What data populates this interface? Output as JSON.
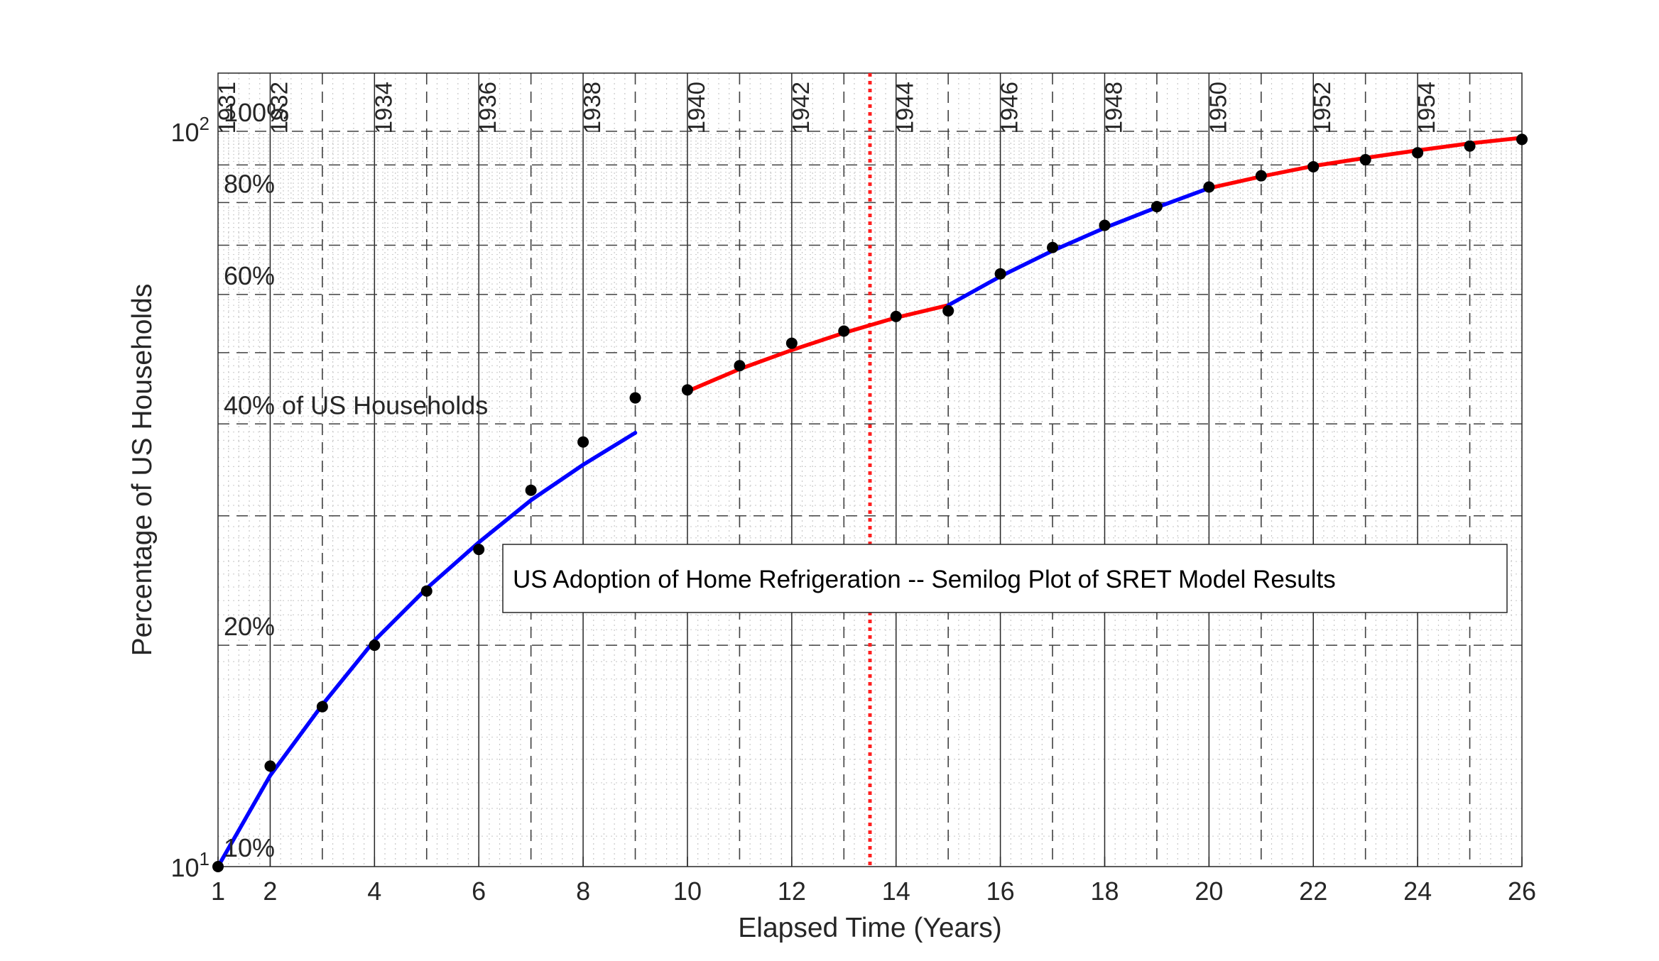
{
  "chart_data": {
    "type": "line",
    "yscale": "log",
    "xlabel": "Elapsed Time (Years)",
    "ylabel": "Percentage of US Households",
    "xlim": [
      1,
      26
    ],
    "ylim": [
      10,
      120
    ],
    "xticks": [
      1,
      2,
      4,
      6,
      8,
      10,
      12,
      14,
      16,
      18,
      20,
      22,
      24,
      26
    ],
    "yticks": [
      {
        "value": 10,
        "base": "10",
        "exp": "1"
      },
      {
        "value": 100,
        "base": "10",
        "exp": "2"
      }
    ],
    "grid": true,
    "year_labels": [
      {
        "x": 1,
        "label": "1931"
      },
      {
        "x": 2,
        "label": "1932"
      },
      {
        "x": 4,
        "label": "1934"
      },
      {
        "x": 6,
        "label": "1936"
      },
      {
        "x": 8,
        "label": "1938"
      },
      {
        "x": 10,
        "label": "1940"
      },
      {
        "x": 12,
        "label": "1942"
      },
      {
        "x": 14,
        "label": "1944"
      },
      {
        "x": 16,
        "label": "1946"
      },
      {
        "x": 18,
        "label": "1948"
      },
      {
        "x": 20,
        "label": "1950"
      },
      {
        "x": 22,
        "label": "1952"
      },
      {
        "x": 24,
        "label": "1954"
      }
    ],
    "percent_labels": [
      {
        "value": 100,
        "label": "100%"
      },
      {
        "value": 80,
        "label": "80%"
      },
      {
        "value": 60,
        "label": "60%"
      },
      {
        "value": 40,
        "label": "40% of US Households"
      },
      {
        "value": 20,
        "label": "20%"
      },
      {
        "value": 10,
        "label": "10%"
      }
    ],
    "annotation": "US Adoption of Home Refrigeration -- Semilog Plot of SRET Model Results",
    "vertical_marker_x": 13.5,
    "points": {
      "x": [
        1,
        2,
        3,
        4,
        5,
        6,
        7,
        8,
        9,
        10,
        11,
        12,
        13,
        14,
        15,
        16,
        17,
        18,
        19,
        20,
        21,
        22,
        23,
        24,
        25,
        26
      ],
      "y": [
        10.0,
        13.7,
        16.5,
        20.0,
        23.7,
        27.0,
        32.5,
        37.8,
        43.4,
        44.5,
        48.0,
        51.5,
        53.5,
        56.0,
        57.0,
        64.0,
        69.5,
        74.5,
        79.0,
        84.0,
        87.0,
        89.5,
        91.5,
        93.5,
        95.5,
        97.5
      ]
    },
    "series": [
      {
        "x": [
          1,
          2,
          3,
          4,
          5,
          6,
          7,
          8,
          9
        ],
        "y": [
          10.0,
          13.3,
          16.6,
          20.3,
          23.9,
          27.6,
          31.5,
          35.2,
          38.9
        ],
        "color": "#0000ff"
      },
      {
        "x": [
          10,
          11,
          12,
          13,
          14,
          15
        ],
        "y": [
          44.3,
          47.5,
          50.4,
          53.2,
          55.8,
          58.0
        ],
        "color": "#ff0000"
      },
      {
        "x": [
          15,
          16,
          17,
          18,
          19,
          20
        ],
        "y": [
          58.0,
          63.5,
          68.8,
          73.9,
          78.8,
          83.7
        ],
        "color": "#0000ff"
      },
      {
        "x": [
          20,
          21,
          22,
          23,
          24,
          25,
          26
        ],
        "y": [
          83.7,
          86.8,
          89.7,
          92.0,
          94.2,
          96.3,
          98.0
        ],
        "color": "#ff0000"
      }
    ]
  }
}
